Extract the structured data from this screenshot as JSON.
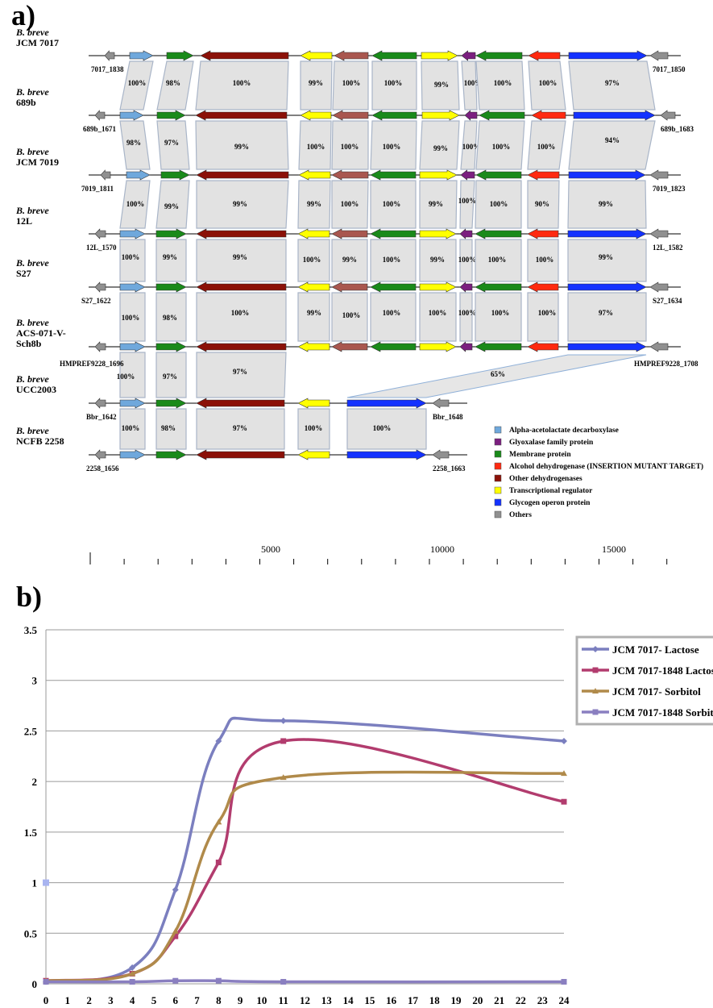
{
  "panel_a": {
    "label": "a)",
    "species": "B. breve",
    "strains": [
      "JCM 7017",
      "689b",
      "JCM 7019",
      "12L",
      "S27",
      "ACS-071-V-Sch8b",
      "UCC2003",
      "NCFB 2258"
    ],
    "left_loci": [
      "7017_1838",
      "689b_1671",
      "7019_1811",
      "12L_1570",
      "S27_1622",
      "HMPREF9228_1696",
      "Bbr_1642",
      "2258_1656"
    ],
    "right_loci": [
      "7017_1850",
      "689b_1683",
      "7019_1823",
      "12L_1582",
      "S27_1634",
      "HMPREF9228_1708",
      "Bbr_1648",
      "2258_1663"
    ],
    "identities": [
      [
        "100%",
        "98%",
        "100%",
        "99%",
        "100%",
        "100%",
        "99%",
        "100%",
        "100%",
        "100%",
        "97%"
      ],
      [
        "98%",
        "97%",
        "99%",
        "100%",
        "100%",
        "100%",
        "99%",
        "100%",
        "100%",
        "100%",
        "94%"
      ],
      [
        "100%",
        "99%",
        "99%",
        "99%",
        "100%",
        "100%",
        "99%",
        "100%",
        "100%",
        "90%",
        "99%"
      ],
      [
        "100%",
        "99%",
        "99%",
        "100%",
        "99%",
        "100%",
        "99%",
        "100%",
        "100%",
        "100%",
        "99%"
      ],
      [
        "100%",
        "98%",
        "100%",
        "99%",
        "100%",
        "100%",
        "100%",
        "100%",
        "100%",
        "100%",
        "97%"
      ],
      [
        "100%",
        "97%",
        "97%",
        "65%"
      ],
      [
        "100%",
        "98%",
        "97%",
        "100%",
        "100%"
      ]
    ],
    "legend": [
      {
        "label": "Alpha-acetolactate decarboxylase",
        "color": "#6fa8dc"
      },
      {
        "label": "Glyoxalase family protein",
        "color": "#7b1f7f"
      },
      {
        "label": "Membrane protein",
        "color": "#1a8a1a"
      },
      {
        "label": "Alcohol dehydrogenase (INSERTION MUTANT TARGET)",
        "color": "#ff2a10"
      },
      {
        "label": "Other dehydrogenases",
        "color": "#8b1108"
      },
      {
        "label": "Transcriptional regulator",
        "color": "#ffff00"
      },
      {
        "label": "Glycogen operon protein",
        "color": "#1432ff"
      },
      {
        "label": "Others",
        "color": "#909090"
      }
    ],
    "other_dh_color": "#a9574f",
    "scale_labels": [
      "5000",
      "10000",
      "15000"
    ]
  },
  "chart_data": {
    "type": "line",
    "panel_label": "b)",
    "x": [
      0,
      4,
      6,
      8,
      11,
      24
    ],
    "x_ticks": [
      "0",
      "1",
      "2",
      "3",
      "4",
      "5",
      "6",
      "7",
      "8",
      "9",
      "10",
      "11",
      "12",
      "13",
      "14",
      "15",
      "16",
      "17",
      "18",
      "19",
      "20",
      "21",
      "22",
      "23",
      "24"
    ],
    "ylim": [
      0,
      3.5
    ],
    "y_ticks": [
      "0",
      "0.5",
      "1",
      "1.5",
      "2",
      "2.5",
      "3",
      "3.5"
    ],
    "grid": true,
    "legend_position": "top-right",
    "series": [
      {
        "name": "JCM 7017- Lactose",
        "color": "#7b7fbf",
        "marker": "diamond",
        "values": [
          0.02,
          0.16,
          0.93,
          2.4,
          2.6,
          2.4
        ]
      },
      {
        "name": "JCM 7017-1848 Lactose",
        "color": "#b23c6e",
        "marker": "square",
        "values": [
          0.03,
          0.1,
          0.47,
          1.2,
          2.4,
          1.8
        ]
      },
      {
        "name": "JCM 7017- Sorbitol",
        "color": "#b08a4a",
        "marker": "triangle",
        "values": [
          0.03,
          0.1,
          0.52,
          1.6,
          2.04,
          2.08
        ]
      },
      {
        "name": "JCM 7017-1848 Sorbitol",
        "color": "#8a7fc0",
        "marker": "square",
        "values": [
          0.02,
          0.02,
          0.03,
          0.03,
          0.02,
          0.02
        ]
      }
    ],
    "stray_point": {
      "x": 0,
      "y": 1,
      "color": "#a8b4f0"
    }
  }
}
